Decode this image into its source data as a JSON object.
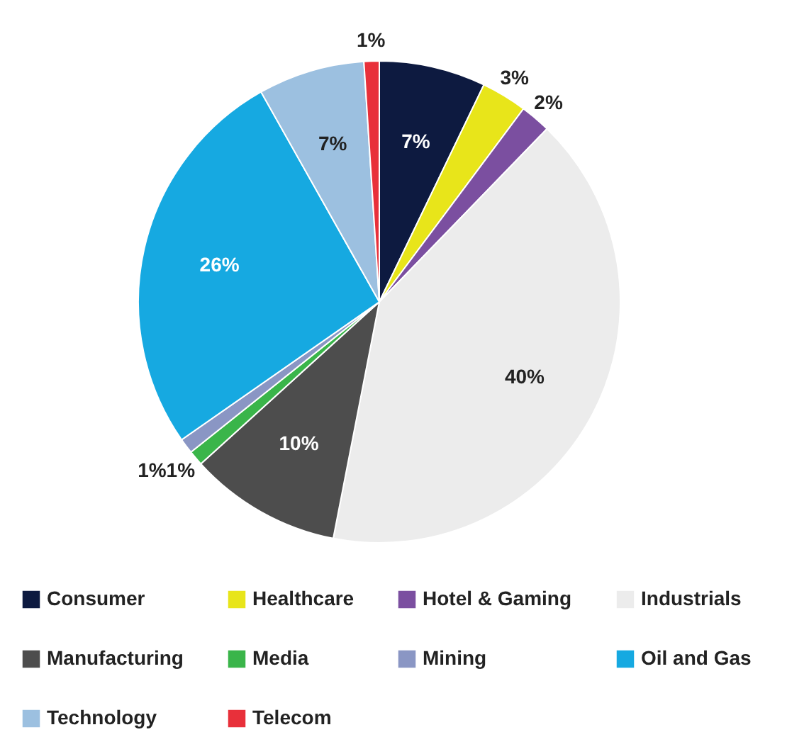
{
  "chart_data": {
    "type": "pie",
    "categories": [
      "Consumer",
      "Healthcare",
      "Hotel & Gaming",
      "Industrials",
      "Manufacturing",
      "Media",
      "Mining",
      "Oil and Gas",
      "Technology",
      "Telecom"
    ],
    "values": [
      7,
      3,
      2,
      40,
      10,
      1,
      1,
      26,
      7,
      1
    ],
    "colors": [
      "#0d1a40",
      "#e8e51a",
      "#7b4fa0",
      "#ececec",
      "#4d4d4d",
      "#3ab54a",
      "#8a96c4",
      "#16a9e1",
      "#9cc0e0",
      "#e8303a"
    ],
    "value_labels": [
      "7%",
      "3%",
      "2%",
      "40%",
      "10%",
      "1%",
      "1%",
      "26%",
      "7%",
      "1%"
    ],
    "legend": "bottom"
  }
}
